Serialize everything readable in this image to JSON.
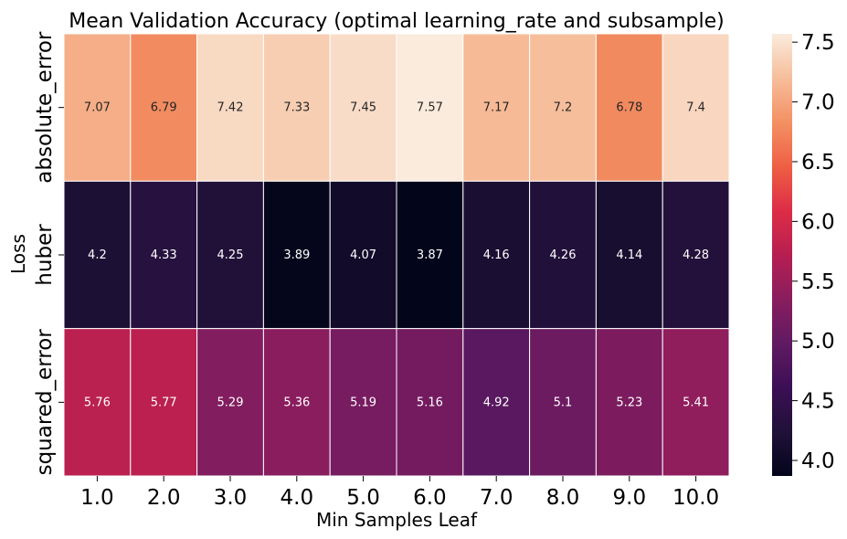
{
  "chart_data": {
    "type": "heatmap",
    "title": "Mean Validation Accuracy (optimal learning_rate and subsample)",
    "xlabel": "Min Samples Leaf",
    "ylabel": "Loss",
    "x_categories": [
      "1.0",
      "2.0",
      "3.0",
      "4.0",
      "5.0",
      "6.0",
      "7.0",
      "8.0",
      "9.0",
      "10.0"
    ],
    "y_categories": [
      "absolute_error",
      "huber",
      "squared_error"
    ],
    "values": [
      [
        7.07,
        6.79,
        7.42,
        7.33,
        7.45,
        7.57,
        7.17,
        7.2,
        6.78,
        7.4
      ],
      [
        4.2,
        4.33,
        4.25,
        3.89,
        4.07,
        3.87,
        4.16,
        4.26,
        4.14,
        4.28
      ],
      [
        5.76,
        5.77,
        5.29,
        5.36,
        5.19,
        5.16,
        4.92,
        5.1,
        5.23,
        5.41
      ]
    ],
    "colorbar": {
      "min": 3.87,
      "max": 7.57,
      "ticks": [
        "4.0",
        "4.5",
        "5.0",
        "5.5",
        "6.0",
        "6.5",
        "7.0",
        "7.5"
      ],
      "colormap": "rocket"
    },
    "grid": false,
    "cell_border_color": "#ffffff"
  }
}
